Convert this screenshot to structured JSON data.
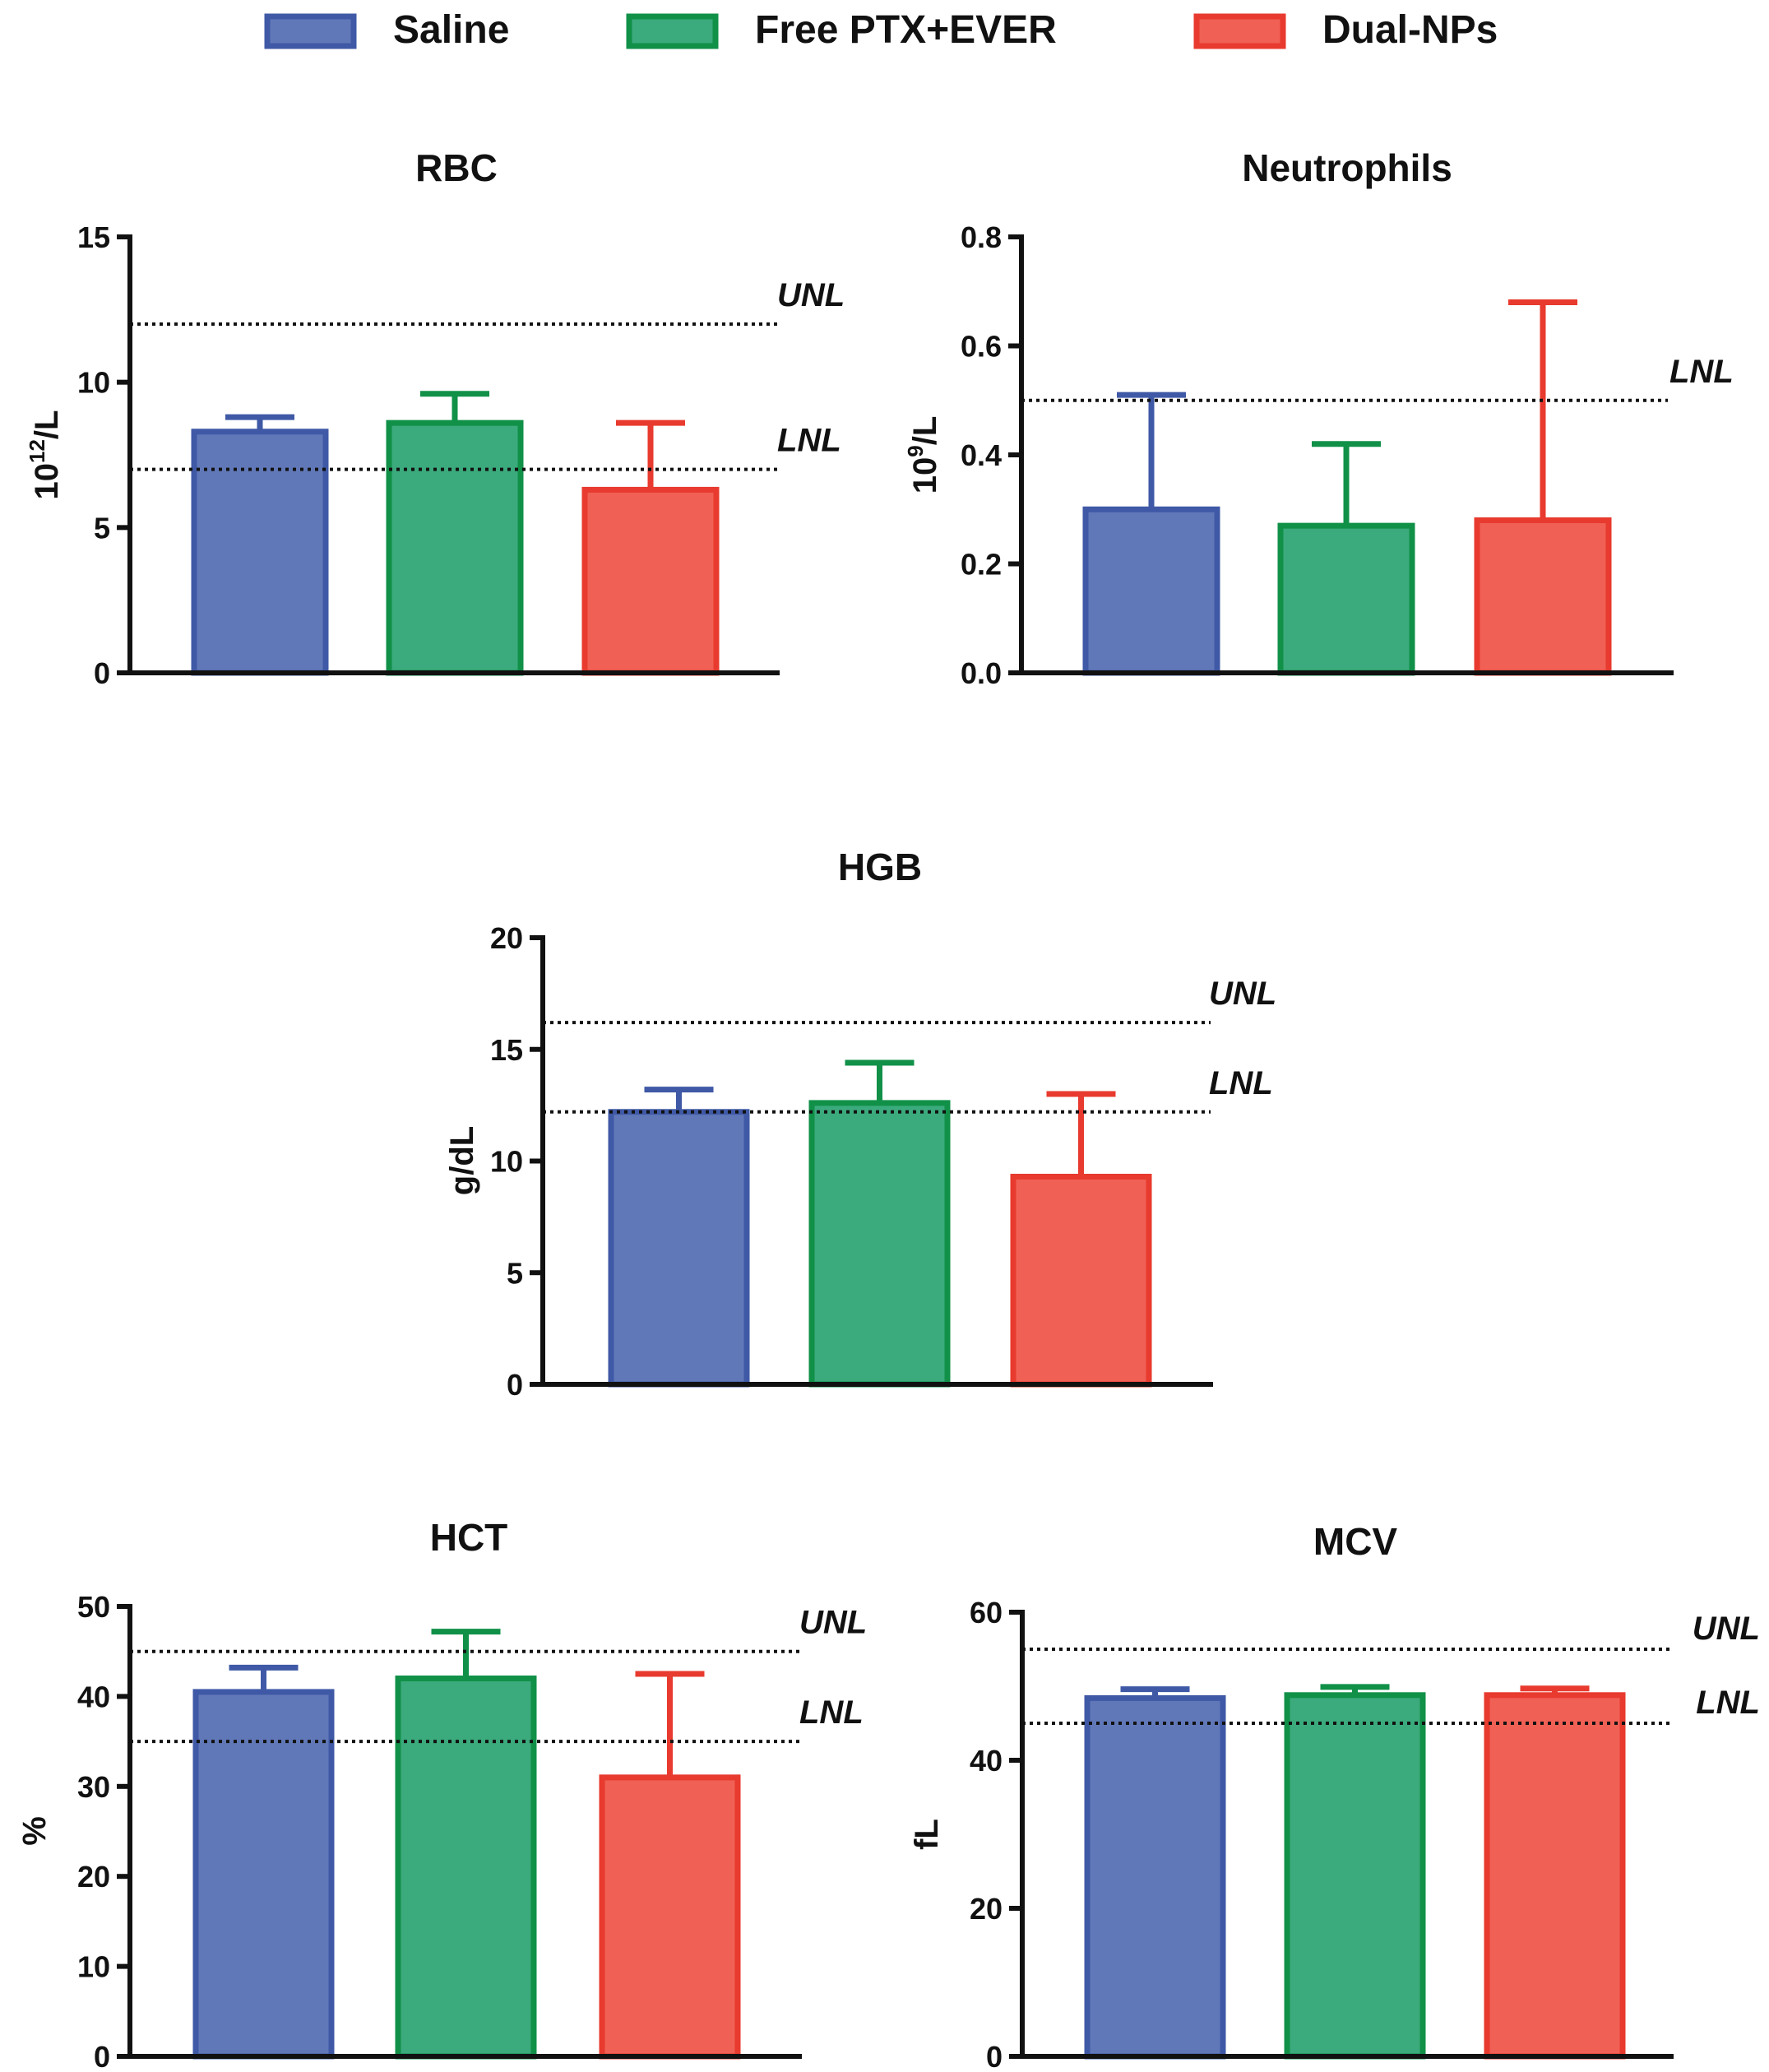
{
  "legend": {
    "position": "top",
    "items": [
      {
        "label": "Saline",
        "fill": "#6178B8",
        "stroke": "#3F59A6"
      },
      {
        "label": "Free PTX+EVER",
        "fill": "#3BAA7C",
        "stroke": "#119048"
      },
      {
        "label": "Dual-NPs",
        "fill": "#F06055",
        "stroke": "#E83A2E"
      }
    ]
  },
  "chart_data": [
    {
      "type": "bar",
      "title": "RBC",
      "ylabel": {
        "base": "10",
        "sup": "12",
        "suffix": "/L"
      },
      "ylim": [
        0,
        15
      ],
      "yticks": [
        "0",
        "5",
        "10",
        "15"
      ],
      "categories": [
        "Saline",
        "Free PTX+EVER",
        "Dual-NPs"
      ],
      "values": [
        8.3,
        8.6,
        6.3
      ],
      "error_upper": [
        8.8,
        9.6,
        8.6
      ],
      "reference_lines": [
        {
          "label": "UNL",
          "value": 12
        },
        {
          "label": "LNL",
          "value": 7
        }
      ]
    },
    {
      "type": "bar",
      "title": "Neutrophils",
      "ylabel": {
        "base": "10",
        "sup": "9",
        "suffix": "/L"
      },
      "ylim": [
        0,
        0.8
      ],
      "yticks": [
        "0.0",
        "0.2",
        "0.4",
        "0.6",
        "0.8"
      ],
      "categories": [
        "Saline",
        "Free PTX+EVER",
        "Dual-NPs"
      ],
      "values": [
        0.3,
        0.27,
        0.28
      ],
      "error_upper": [
        0.51,
        0.42,
        0.68
      ],
      "reference_lines": [
        {
          "label": "LNL",
          "value": 0.5
        }
      ]
    },
    {
      "type": "bar",
      "title": "HGB",
      "ylabel": {
        "base": "g/dL",
        "sup": "",
        "suffix": ""
      },
      "ylim": [
        0,
        20
      ],
      "yticks": [
        "0",
        "5",
        "10",
        "15",
        "20"
      ],
      "categories": [
        "Saline",
        "Free PTX+EVER",
        "Dual-NPs"
      ],
      "values": [
        12.2,
        12.6,
        9.3
      ],
      "error_upper": [
        13.2,
        14.4,
        13.0
      ],
      "reference_lines": [
        {
          "label": "UNL",
          "value": 16.2
        },
        {
          "label": "LNL",
          "value": 12.2
        }
      ]
    },
    {
      "type": "bar",
      "title": "HCT",
      "ylabel": {
        "base": "%",
        "sup": "",
        "suffix": ""
      },
      "ylim": [
        0,
        50
      ],
      "yticks": [
        "0",
        "10",
        "20",
        "30",
        "40",
        "50"
      ],
      "categories": [
        "Saline",
        "Free PTX+EVER",
        "Dual-NPs"
      ],
      "values": [
        40.5,
        42.0,
        31.0
      ],
      "error_upper": [
        43.2,
        47.2,
        42.5
      ],
      "reference_lines": [
        {
          "label": "UNL",
          "value": 45
        },
        {
          "label": "LNL",
          "value": 35
        }
      ]
    },
    {
      "type": "bar",
      "title": "MCV",
      "ylabel": {
        "base": "fL",
        "sup": "",
        "suffix": ""
      },
      "ylim": [
        0,
        60
      ],
      "yticks": [
        "0",
        "20",
        "40",
        "60"
      ],
      "categories": [
        "Saline",
        "Free PTX+EVER",
        "Dual-NPs"
      ],
      "values": [
        48.4,
        48.8,
        48.8
      ],
      "error_upper": [
        49.6,
        49.9,
        49.7
      ],
      "reference_lines": [
        {
          "label": "UNL",
          "value": 55
        },
        {
          "label": "LNL",
          "value": 45
        }
      ]
    }
  ]
}
